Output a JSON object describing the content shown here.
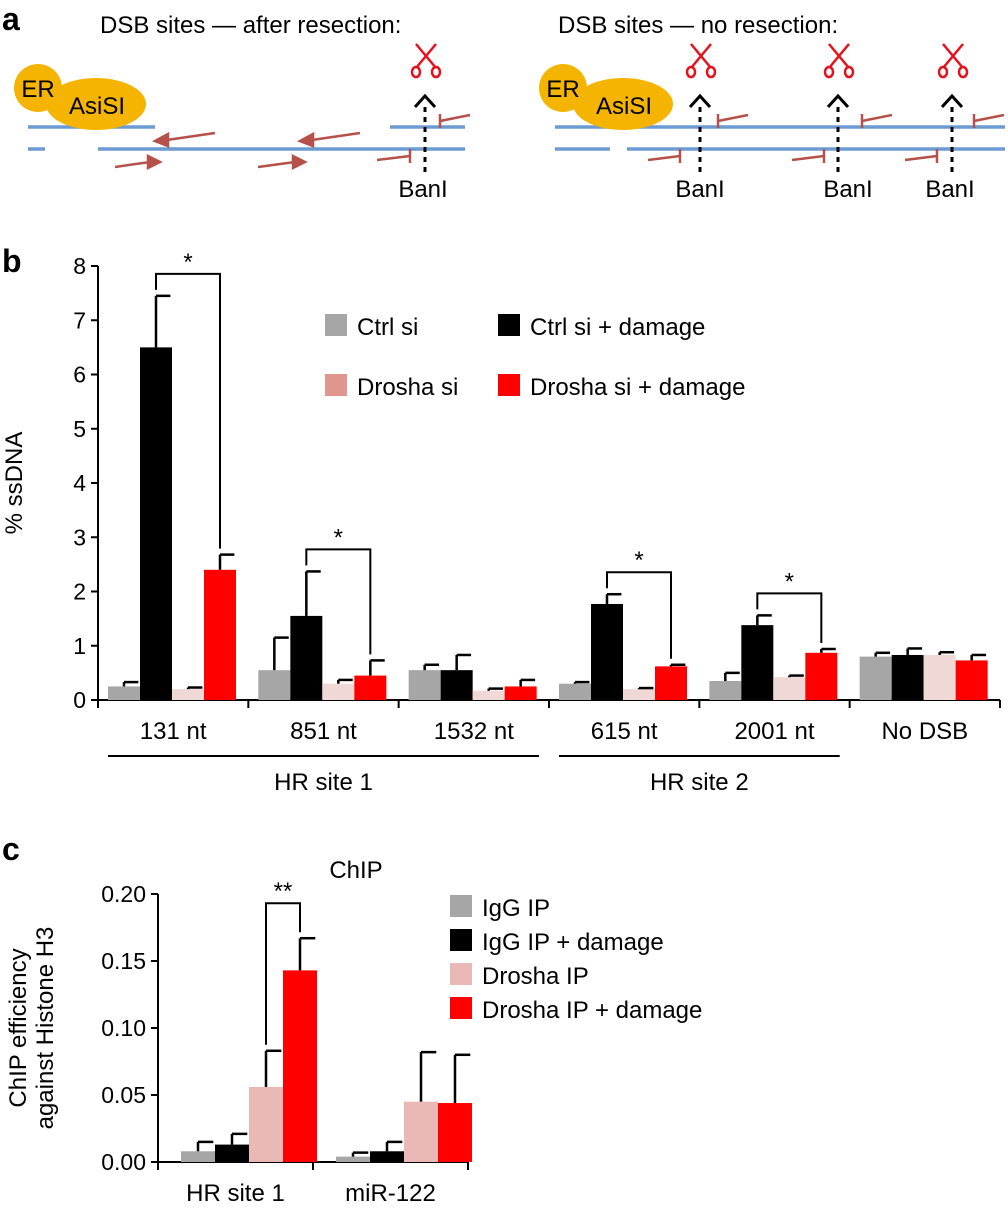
{
  "panel_a": {
    "letter": "a",
    "left": {
      "title": "DSB sites — after resection:",
      "er_label": "ER",
      "asisi_label": "AsiSI",
      "enzyme_label": "BanI"
    },
    "right": {
      "title": "DSB sites — no resection:",
      "er_label": "ER",
      "asisi_label": "AsiSI",
      "enzyme_labels": [
        "BanI",
        "BanI",
        "BanI"
      ]
    },
    "colors": {
      "dna": "#6b9bd2",
      "primer": "#b5504a",
      "scissors": "#e8101a",
      "protein": "#f4b400"
    }
  },
  "chart_data": [
    {
      "type": "bar",
      "panel": "b",
      "ylabel": "% ssDNA",
      "ylim": [
        0,
        8
      ],
      "yticks": [
        "0",
        "1",
        "2",
        "3",
        "4",
        "5",
        "6",
        "7",
        "8"
      ],
      "categories": [
        "131 nt",
        "851 nt",
        "1532 nt",
        "615 nt",
        "2001 nt",
        "No DSB"
      ],
      "groups": [
        {
          "label": "HR site 1",
          "from": 0,
          "to": 2
        },
        {
          "label": "HR site 2",
          "from": 3,
          "to": 4
        }
      ],
      "series": [
        {
          "name": "Ctrl si",
          "color": "#a6a6a6",
          "values": [
            0.25,
            0.55,
            0.55,
            0.3,
            0.35,
            0.8
          ],
          "errors": [
            0.08,
            0.6,
            0.1,
            0.03,
            0.15,
            0.07
          ]
        },
        {
          "name": "Ctrl si + damage",
          "color": "#000000",
          "values": [
            6.5,
            1.55,
            0.55,
            1.77,
            1.38,
            0.83
          ],
          "errors": [
            0.95,
            0.82,
            0.28,
            0.18,
            0.18,
            0.12
          ]
        },
        {
          "name": "Drosha si",
          "color": "#f0d8d6",
          "legend_color": "#e0958f",
          "values": [
            0.2,
            0.3,
            0.17,
            0.2,
            0.42,
            0.83
          ],
          "errors": [
            0.03,
            0.07,
            0.04,
            0.02,
            0.03,
            0.05
          ]
        },
        {
          "name": "Drosha si + damage",
          "color": "#ff0000",
          "values": [
            2.4,
            0.45,
            0.25,
            0.62,
            0.87,
            0.73
          ],
          "errors": [
            0.28,
            0.28,
            0.12,
            0.03,
            0.07,
            0.1
          ]
        }
      ],
      "significance": [
        {
          "category": 0,
          "from_series": 1,
          "to_series": 3,
          "label": "*"
        },
        {
          "category": 1,
          "from_series": 1,
          "to_series": 3,
          "label": "*"
        },
        {
          "category": 3,
          "from_series": 1,
          "to_series": 3,
          "label": "*"
        },
        {
          "category": 4,
          "from_series": 1,
          "to_series": 3,
          "label": "*"
        }
      ],
      "legend": "top-right"
    },
    {
      "type": "bar",
      "panel": "c",
      "title": "ChIP",
      "ylabel": "ChIP efficiency against Histone H3",
      "ylabel_lines": [
        "ChIP efficiency",
        "against Histone H3"
      ],
      "ylim": [
        0,
        0.2
      ],
      "yticks": [
        "0.00",
        "0.05",
        "0.10",
        "0.15",
        "0.20"
      ],
      "categories": [
        "HR site 1",
        "miR-122"
      ],
      "series": [
        {
          "name": "IgG IP",
          "color": "#a6a6a6",
          "values": [
            0.008,
            0.004
          ],
          "errors": [
            0.007,
            0.003
          ]
        },
        {
          "name": "IgG IP + damage",
          "color": "#000000",
          "values": [
            0.013,
            0.008
          ],
          "errors": [
            0.008,
            0.007
          ]
        },
        {
          "name": "Drosha IP",
          "color": "#eab9b6",
          "values": [
            0.056,
            0.045
          ],
          "errors": [
            0.027,
            0.037
          ]
        },
        {
          "name": "Drosha IP + damage",
          "color": "#ff0000",
          "values": [
            0.143,
            0.044
          ],
          "errors": [
            0.024,
            0.036
          ]
        }
      ],
      "significance": [
        {
          "category": 0,
          "from_series": 2,
          "to_series": 3,
          "label": "**"
        }
      ],
      "legend": "top-right"
    }
  ]
}
